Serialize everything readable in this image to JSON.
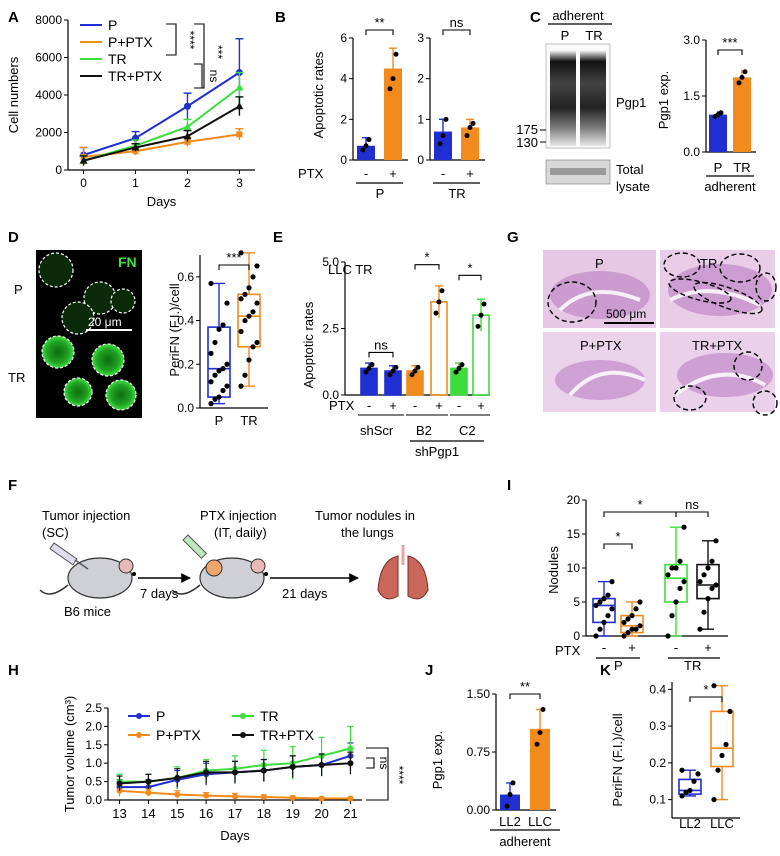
{
  "figure": {
    "colors": {
      "P": "#1f2fd1",
      "PPTX": "#f28b1e",
      "TR": "#3cdd3c",
      "TRPTX": "#111111"
    },
    "panel_letters": [
      "A",
      "B",
      "C",
      "D",
      "E",
      "F",
      "G",
      "H",
      "I",
      "J",
      "K"
    ],
    "b": {
      "ylabel": "Apoptotic rates",
      "ptx": "PTX",
      "minus": "-",
      "plus": "+",
      "group1": "P",
      "group2": "TR",
      "sig1": "**",
      "sig2": "ns",
      "ticks_left": [
        "0",
        "2",
        "4",
        "6"
      ],
      "ticks_right": [
        "0",
        "1",
        "2",
        "3"
      ]
    },
    "c": {
      "header": "adherent",
      "lane_p": "P",
      "lane_tr": "TR",
      "band_label": "Pgp1",
      "mw_top": "175",
      "mw_bot": "130",
      "total": "Total",
      "lysate": "lysate",
      "ylabel": "Pgp1 exp.",
      "ticks": [
        "0.0",
        "1.5",
        "3.0"
      ],
      "x_p": "P",
      "x_tr": "TR",
      "xgroup": "adherent",
      "sig": "***"
    },
    "d": {
      "stain": "FN",
      "row1": "P",
      "row2": "TR",
      "scale": "20 μm",
      "ylabel": "PeriFN (F.I.)/cell",
      "ticks": [
        "0.0",
        "0.2",
        "0.4",
        "0.6"
      ],
      "x_p": "P",
      "x_tr": "TR",
      "sig": "***"
    },
    "e": {
      "title": "LLC TR",
      "ylabel": "Apoptotic rates",
      "ticks": [
        "0.0",
        "2.5",
        "5.0"
      ],
      "ptx": "PTX",
      "g1": "shScr",
      "g2": "B2",
      "g3": "C2",
      "g_parent": "shPgp1",
      "sig1": "ns",
      "sig2": "*",
      "sig3": "*",
      "minus": "-",
      "plus": "+"
    },
    "h": {
      "p": "P",
      "tr": "TR",
      "pptx": "P+PTX",
      "trptx": "TR+PTX",
      "scale": "500 μm"
    },
    "f": {
      "step1": "Tumor injection",
      "step1b": "(SC)",
      "step2": "PTX injection",
      "step2b": "(IT, daily)",
      "step3": "Tumor nodules in",
      "step3b": "the lungs",
      "mouse": "B6 mice",
      "arrow1": "7 days",
      "arrow2": "21 days"
    },
    "i": {
      "ylabel": "Nodules",
      "ticks": [
        "0",
        "5",
        "10",
        "15",
        "20"
      ],
      "ptx": "PTX",
      "g1": "P",
      "g2": "TR",
      "sig_p": "*",
      "sig_top": "*",
      "sig_tr": "ns",
      "minus": "-",
      "plus": "+"
    },
    "j": {
      "ylabel": "Pgp1 exp.",
      "ticks": [
        "0.00",
        "0.75",
        "1.50"
      ],
      "x1": "LL2",
      "x2": "LLC",
      "xgroup": "adherent",
      "sig": "**"
    },
    "k": {
      "ylabel": "PeriFN (F.I.)/cell",
      "ticks": [
        "0.1",
        "0.2",
        "0.3",
        "0.4"
      ],
      "x1": "LL2",
      "x2": "LLC",
      "sig": "*"
    }
  },
  "chart_data": [
    {
      "id": "A",
      "type": "line",
      "title": "",
      "xlabel": "Days",
      "ylabel": "Cell numbers",
      "x": [
        0,
        1,
        2,
        3
      ],
      "xlim": [
        -0.3,
        3.3
      ],
      "ylim": [
        0,
        8000
      ],
      "yticks": [
        "0",
        "2000",
        "4000",
        "6000",
        "8000"
      ],
      "xticks": [
        "0",
        "1",
        "2",
        "3"
      ],
      "series": [
        {
          "name": "P",
          "values": [
            800,
            1700,
            3400,
            5200
          ],
          "err": [
            400,
            350,
            700,
            1800
          ]
        },
        {
          "name": "P+PTX",
          "values": [
            700,
            1000,
            1500,
            1900
          ],
          "err": [
            500,
            200,
            250,
            300
          ]
        },
        {
          "name": "TR",
          "values": [
            500,
            1300,
            2300,
            4400
          ],
          "err": [
            250,
            300,
            400,
            800
          ]
        },
        {
          "name": "TR+PTX",
          "values": [
            500,
            1200,
            1800,
            3400
          ],
          "err": [
            250,
            200,
            300,
            500
          ]
        }
      ],
      "annotations": [
        "****",
        "***",
        "ns"
      ],
      "legend": "top-left"
    },
    {
      "id": "G",
      "type": "line",
      "title": "",
      "xlabel": "Days",
      "ylabel": "Tumor volume (cm³)",
      "x": [
        13,
        14,
        15,
        16,
        17,
        18,
        19,
        20,
        21
      ],
      "xlim": [
        12.6,
        21.4
      ],
      "ylim": [
        0,
        2.5
      ],
      "yticks": [
        "0.0",
        "0.5",
        "1.0",
        "1.5",
        "2.0",
        "2.5"
      ],
      "xticks": [
        "13",
        "14",
        "15",
        "16",
        "17",
        "18",
        "19",
        "20",
        "21"
      ],
      "series": [
        {
          "name": "P",
          "values": [
            0.35,
            0.35,
            0.55,
            0.7,
            0.75,
            0.8,
            0.9,
            0.95,
            1.2
          ],
          "err": [
            0.2,
            0.2,
            0.25,
            0.3,
            0.3,
            0.3,
            0.3,
            0.3,
            0.35
          ]
        },
        {
          "name": "P+PTX",
          "values": [
            0.25,
            0.2,
            0.15,
            0.12,
            0.1,
            0.08,
            0.06,
            0.04,
            0.04
          ],
          "err": [
            0.15,
            0.1,
            0.1,
            0.08,
            0.08,
            0.06,
            0.05,
            0.04,
            0.04
          ]
        },
        {
          "name": "TR",
          "values": [
            0.5,
            0.5,
            0.6,
            0.8,
            0.85,
            0.95,
            1.0,
            1.2,
            1.4
          ],
          "err": [
            0.2,
            0.2,
            0.3,
            0.3,
            0.35,
            0.4,
            0.45,
            0.5,
            0.6
          ]
        },
        {
          "name": "TR+PTX",
          "values": [
            0.45,
            0.5,
            0.6,
            0.75,
            0.75,
            0.8,
            0.9,
            0.95,
            1.0
          ],
          "err": [
            0.2,
            0.2,
            0.25,
            0.3,
            0.3,
            0.3,
            0.3,
            0.3,
            0.3
          ]
        }
      ],
      "annotations": [
        "ns",
        "****"
      ],
      "legend": "top-left"
    },
    {
      "id": "B",
      "type": "bar",
      "title": "",
      "ylabel": "Apoptotic rates",
      "subplots": [
        {
          "group": "P",
          "ylim": [
            0,
            6
          ],
          "categories": [
            "-",
            "+"
          ],
          "values": [
            0.7,
            4.5
          ],
          "err": [
            0.4,
            1.0
          ],
          "points": [
            [
              0.5,
              0.7,
              1.0
            ],
            [
              3.5,
              4.0,
              5.2
            ]
          ]
        },
        {
          "group": "TR",
          "ylim": [
            0,
            3
          ],
          "categories": [
            "-",
            "+"
          ],
          "values": [
            0.7,
            0.8
          ],
          "err": [
            0.3,
            0.2
          ],
          "points": [
            [
              0.4,
              0.6,
              1.0
            ],
            [
              0.6,
              0.8,
              0.9
            ]
          ]
        }
      ]
    },
    {
      "id": "C",
      "type": "bar",
      "title": "",
      "ylabel": "Pgp1 exp.",
      "ylim": [
        0,
        3
      ],
      "categories": [
        "P",
        "TR"
      ],
      "values": [
        1.0,
        2.0
      ],
      "err": [
        0.1,
        0.2
      ],
      "points": [
        [
          0.95,
          1.0,
          1.05
        ],
        [
          1.85,
          2.0,
          2.15
        ]
      ]
    },
    {
      "id": "D",
      "type": "box",
      "ylabel": "PeriFN (F.I.)/cell",
      "ylim": [
        0,
        0.7
      ],
      "categories": [
        "P",
        "TR"
      ],
      "boxes": [
        {
          "min": 0.02,
          "q1": 0.05,
          "median": 0.18,
          "q3": 0.37,
          "max": 0.57,
          "points": [
            0.02,
            0.04,
            0.05,
            0.08,
            0.1,
            0.12,
            0.15,
            0.17,
            0.18,
            0.2,
            0.25,
            0.3,
            0.36,
            0.38,
            0.48,
            0.57
          ]
        },
        {
          "min": 0.1,
          "q1": 0.28,
          "median": 0.42,
          "q3": 0.52,
          "max": 0.71,
          "points": [
            0.1,
            0.15,
            0.22,
            0.28,
            0.3,
            0.35,
            0.4,
            0.42,
            0.44,
            0.48,
            0.5,
            0.52,
            0.55,
            0.6,
            0.65,
            0.71
          ]
        }
      ]
    },
    {
      "id": "E",
      "type": "bar",
      "ylabel": "Apoptotic rates",
      "ylim": [
        0,
        5
      ],
      "groups": [
        "shScr",
        "B2",
        "C2"
      ],
      "bars": [
        {
          "group": "shScr",
          "ptx": "-",
          "value": 1.0,
          "err": 0.2,
          "color": "P"
        },
        {
          "group": "shScr",
          "ptx": "+",
          "value": 0.9,
          "err": 0.2,
          "color": "P"
        },
        {
          "group": "B2",
          "ptx": "-",
          "value": 0.9,
          "err": 0.2,
          "color": "PPTX"
        },
        {
          "group": "B2",
          "ptx": "+",
          "value": 3.5,
          "err": 0.6,
          "color": "PPTX"
        },
        {
          "group": "C2",
          "ptx": "-",
          "value": 1.0,
          "err": 0.2,
          "color": "TR"
        },
        {
          "group": "C2",
          "ptx": "+",
          "value": 3.0,
          "err": 0.6,
          "color": "TR"
        }
      ]
    },
    {
      "id": "I",
      "type": "box",
      "ylabel": "Nodules",
      "ylim": [
        0,
        20
      ],
      "categories": [
        "P -",
        "P +",
        "TR -",
        "TR +"
      ],
      "boxes": [
        {
          "min": 0,
          "q1": 2,
          "median": 4.5,
          "q3": 5.5,
          "max": 8,
          "points": [
            0,
            1,
            2,
            3,
            4,
            4.5,
            5,
            5.5,
            6,
            8
          ]
        },
        {
          "min": 0,
          "q1": 0.5,
          "median": 1.5,
          "q3": 3,
          "max": 5,
          "points": [
            0,
            0.5,
            1,
            1,
            1.5,
            2,
            2.5,
            3,
            4,
            5
          ]
        },
        {
          "min": 0,
          "q1": 5,
          "median": 8.5,
          "q3": 10.5,
          "max": 16,
          "points": [
            0,
            3,
            5,
            7,
            8,
            9,
            10,
            10,
            11,
            16
          ]
        },
        {
          "min": 1,
          "q1": 5.5,
          "median": 7.5,
          "q3": 10.5,
          "max": 14,
          "points": [
            1,
            3.5,
            5.5,
            7,
            7.5,
            8,
            9,
            10,
            11,
            14
          ]
        }
      ]
    },
    {
      "id": "J",
      "type": "bar",
      "ylabel": "Pgp1 exp.",
      "ylim": [
        0,
        1.5
      ],
      "categories": [
        "LL2",
        "LLC"
      ],
      "values": [
        0.2,
        1.05
      ],
      "err": [
        0.15,
        0.25
      ],
      "points": [
        [
          0.05,
          0.2,
          0.35
        ],
        [
          0.85,
          1.0,
          1.3
        ]
      ]
    },
    {
      "id": "K",
      "type": "box",
      "ylabel": "PeriFN (F.I.)/cell",
      "ylim": [
        0.05,
        0.42
      ],
      "categories": [
        "LL2",
        "LLC"
      ],
      "boxes": [
        {
          "min": 0.11,
          "q1": 0.115,
          "median": 0.125,
          "q3": 0.155,
          "max": 0.18,
          "points": [
            0.11,
            0.12,
            0.125,
            0.15,
            0.17,
            0.18
          ]
        },
        {
          "min": 0.1,
          "q1": 0.19,
          "median": 0.24,
          "q3": 0.34,
          "max": 0.41,
          "points": [
            0.1,
            0.18,
            0.22,
            0.25,
            0.34,
            0.41
          ]
        }
      ]
    }
  ]
}
